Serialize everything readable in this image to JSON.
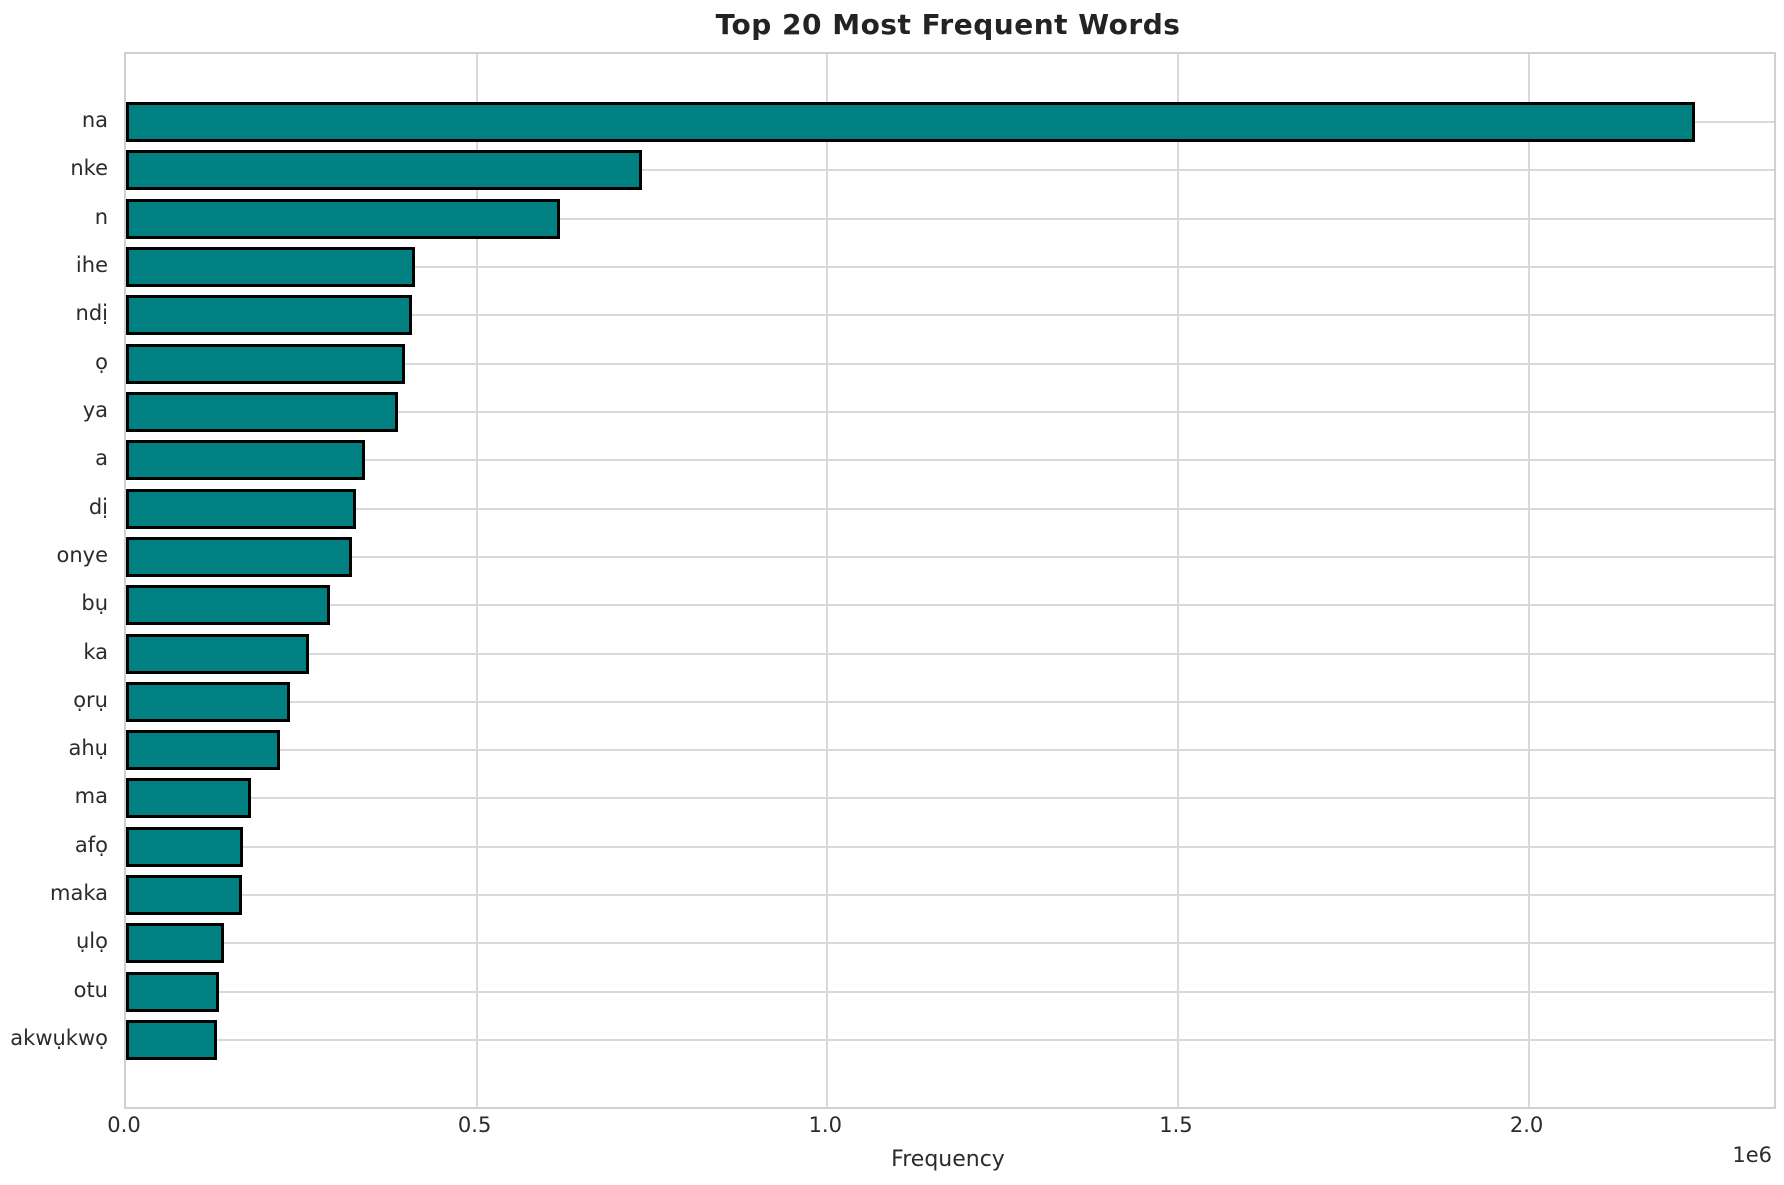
{
  "chart_data": {
    "type": "bar",
    "orientation": "horizontal",
    "title": "Top 20 Most Frequent Words",
    "xlabel": "Frequency",
    "ylabel": "",
    "categories": [
      "na",
      "nke",
      "n",
      "ihe",
      "ndị",
      "ọ",
      "ya",
      "a",
      "dị",
      "onye",
      "bụ",
      "ka",
      "ọrụ",
      "ahụ",
      "ma",
      "afọ",
      "maka",
      "ụlọ",
      "otu",
      "akwụkwọ"
    ],
    "values": [
      2237000,
      736000,
      619000,
      412000,
      408000,
      398000,
      388000,
      341000,
      328000,
      322000,
      291000,
      261000,
      234000,
      220000,
      178000,
      167000,
      165000,
      140000,
      133000,
      130000
    ],
    "xlim": [
      0,
      2350000
    ],
    "xticks": [
      0,
      500000,
      1000000,
      1500000,
      2000000
    ],
    "xtick_labels": [
      "0.0",
      "0.5",
      "1.0",
      "1.5",
      "2.0"
    ],
    "offset_label": "1e6",
    "bar_color": "#008080",
    "bar_edge_color": "#000000",
    "grid": true,
    "grid_color": "#d9d9d9",
    "legend_position": "none"
  }
}
